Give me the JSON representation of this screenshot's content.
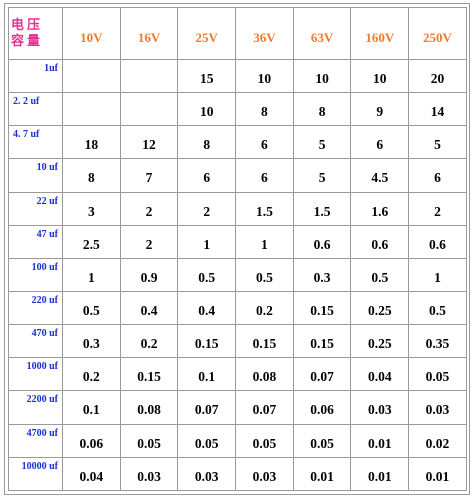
{
  "header": {
    "corner_top": "电压",
    "corner_bottom": "容量",
    "voltages": [
      "10V",
      "16V",
      "25V",
      "36V",
      "63V",
      "160V",
      "250V"
    ]
  },
  "rows": [
    {
      "capacity": "1uf",
      "values": [
        "",
        "",
        "15",
        "10",
        "10",
        "10",
        "20"
      ]
    },
    {
      "capacity": "2. 2 uf",
      "values": [
        "",
        "",
        "10",
        "8",
        "8",
        "9",
        "14"
      ]
    },
    {
      "capacity": "4. 7 uf",
      "values": [
        "18",
        "12",
        "8",
        "6",
        "5",
        "6",
        "5"
      ]
    },
    {
      "capacity": "10 uf",
      "values": [
        "8",
        "7",
        "6",
        "6",
        "5",
        "4.5",
        "6"
      ]
    },
    {
      "capacity": "22 uf",
      "values": [
        "3",
        "2",
        "2",
        "1.5",
        "1.5",
        "1.6",
        "2"
      ]
    },
    {
      "capacity": "47 uf",
      "values": [
        "2.5",
        "2",
        "1",
        "1",
        "0.6",
        "0.6",
        "0.6"
      ]
    },
    {
      "capacity": "100 uf",
      "values": [
        "1",
        "0.9",
        "0.5",
        "0.5",
        "0.3",
        "0.5",
        "1"
      ]
    },
    {
      "capacity": "220 uf",
      "values": [
        "0.5",
        "0.4",
        "0.4",
        "0.2",
        "0.15",
        "0.25",
        "0.5"
      ]
    },
    {
      "capacity": "470 uf",
      "values": [
        "0.3",
        "0.2",
        "0.15",
        "0.15",
        "0.15",
        "0.25",
        "0.35"
      ]
    },
    {
      "capacity": "1000 uf",
      "values": [
        "0.2",
        "0.15",
        "0.1",
        "0.08",
        "0.07",
        "0.04",
        "0.05"
      ]
    },
    {
      "capacity": "2200 uf",
      "values": [
        "0.1",
        "0.08",
        "0.07",
        "0.07",
        "0.06",
        "0.03",
        "0.03"
      ]
    },
    {
      "capacity": "4700 uf",
      "values": [
        "0.06",
        "0.05",
        "0.05",
        "0.05",
        "0.05",
        "0.01",
        "0.02"
      ]
    },
    {
      "capacity": "10000 uf",
      "values": [
        "0.04",
        "0.03",
        "0.03",
        "0.03",
        "0.01",
        "0.01",
        "0.01"
      ]
    }
  ],
  "colors": {
    "corner_label": "#e0338f",
    "voltage_header": "#f07a2a",
    "capacity_label": "#1a2fd4",
    "values": "#000000",
    "grid": "#9a9a9a"
  }
}
